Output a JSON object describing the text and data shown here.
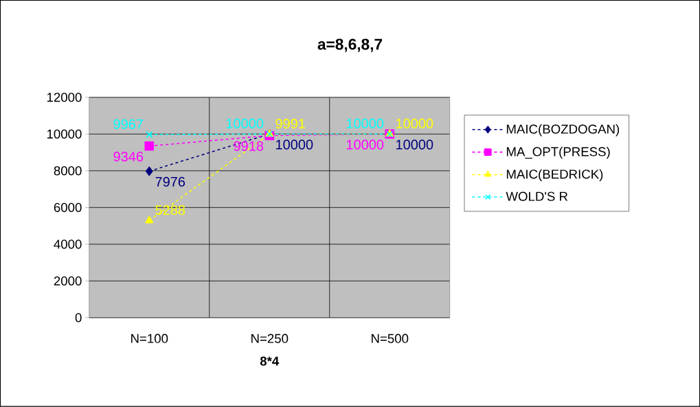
{
  "chart_data": {
    "type": "line",
    "title": "a=8,6,8,7",
    "xlabel": "8*4",
    "categories": [
      "N=100",
      "N=250",
      "N=500"
    ],
    "series": [
      {
        "name": "MAIC(BOZDOGAN)",
        "color": "#000080",
        "marker": "diamond",
        "values": [
          7976,
          10000,
          10000
        ]
      },
      {
        "name": "MA_OPT(PRESS)",
        "color": "#ff00ff",
        "marker": "square",
        "values": [
          9346,
          9918,
          10000
        ]
      },
      {
        "name": "MAIC(BEDRICK)",
        "color": "#ffff00",
        "marker": "triangle",
        "values": [
          5288,
          9991,
          10000
        ]
      },
      {
        "name": "WOLD'S R",
        "color": "#00ffff",
        "marker": "cross",
        "values": [
          9967,
          10000,
          10000
        ]
      }
    ],
    "ylim": [
      0,
      12000
    ],
    "yticks": [
      0,
      2000,
      4000,
      6000,
      8000,
      10000,
      12000
    ],
    "grid": true,
    "legend": "right",
    "line_style": "dashed",
    "data_labels": true
  }
}
